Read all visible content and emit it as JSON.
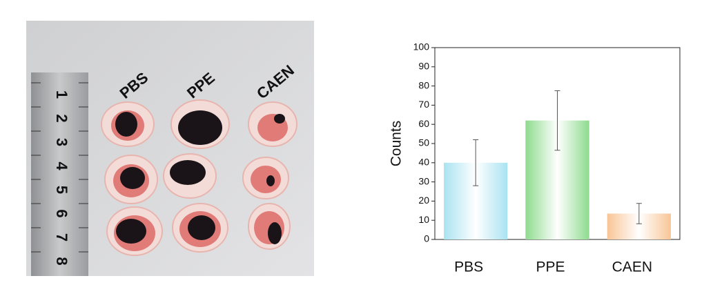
{
  "photo": {
    "labels": [
      "PBS",
      "PPE",
      "CAEN"
    ],
    "ruler_marks": [
      "1",
      "2",
      "3",
      "4",
      "5",
      "6",
      "7",
      "8"
    ]
  },
  "chart_data": {
    "type": "bar",
    "y_label": "Counts",
    "categories": [
      "PBS",
      "PPE",
      "CAEN"
    ],
    "values": [
      40,
      62,
      13.5
    ],
    "errors": [
      12,
      15.5,
      5.3
    ],
    "colors": [
      "#a9e3f1",
      "#8edb8e",
      "#f8c596"
    ],
    "ylim": [
      0,
      100
    ],
    "yticks": [
      0,
      10,
      20,
      30,
      40,
      50,
      60,
      70,
      80,
      90,
      100
    ]
  }
}
